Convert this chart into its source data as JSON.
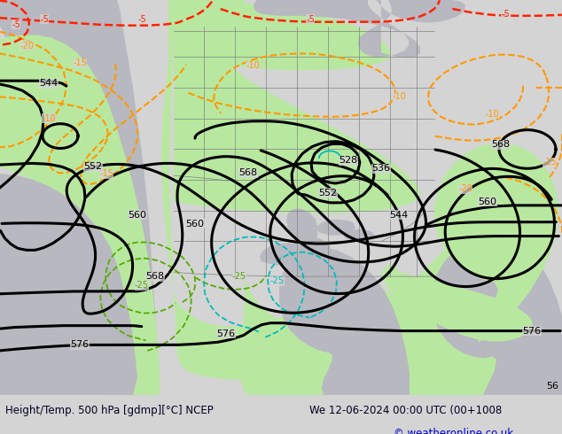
{
  "title_left": "Height/Temp. 500 hPa [gdmp][°C] NCEP",
  "title_right": "We 12-06-2024 00:00 UTC (00+1008",
  "copyright": "© weatheronline.co.uk",
  "bg_color": "#d4d4d4",
  "land_green_color": "#b8e8a0",
  "land_gray_color": "#b8b8c0",
  "ocean_color": "#d4d4d4",
  "figsize": [
    6.34,
    4.9
  ],
  "dpi": 100,
  "bottom_text_color": "#000022",
  "copyright_color": "#0000cc"
}
